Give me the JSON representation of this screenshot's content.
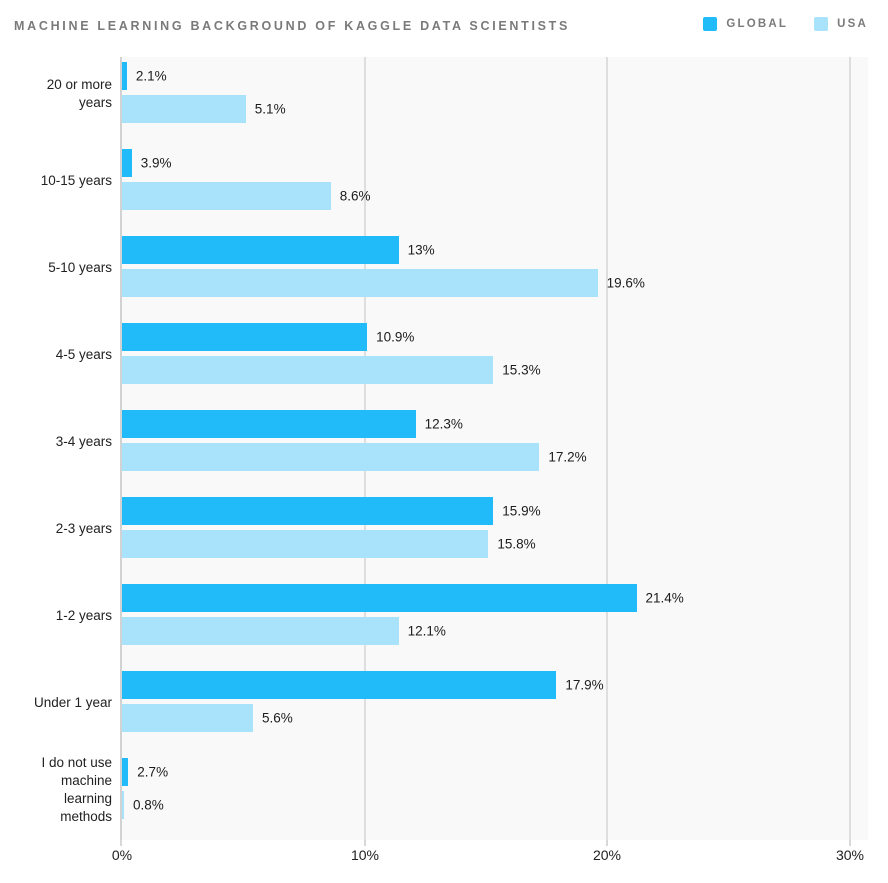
{
  "title": "MACHINE LEARNING BACKGROUND OF KAGGLE DATA SCIENTISTS",
  "legend": {
    "items": [
      {
        "label": "GLOBAL",
        "color": "#21BBFA"
      },
      {
        "label": "USA",
        "color": "#A9E2FB"
      }
    ]
  },
  "chart_data": {
    "type": "bar",
    "orientation": "horizontal",
    "title": "MACHINE LEARNING BACKGROUND OF KAGGLE DATA SCIENTISTS",
    "categories": [
      "20 or more years",
      "10-15 years",
      "5-10 years",
      "4-5 years",
      "3-4 years",
      "2-3 years",
      "1-2 years",
      "Under 1 year",
      "I do not use machine learning methods"
    ],
    "category_display": [
      "20 or more\nyears",
      "10-15 years",
      "5-10 years",
      "4-5 years",
      "3-4 years",
      "2-3 years",
      "1-2 years",
      "Under 1 year",
      "I do not use\nmachine\nlearning\nmethods"
    ],
    "series": [
      {
        "name": "GLOBAL",
        "color": "#21BBFA",
        "values": [
          2.1,
          3.9,
          13,
          10.9,
          12.3,
          15.9,
          21.4,
          17.9,
          2.7
        ],
        "value_labels": [
          "2.1%",
          "3.9%",
          "13%",
          "10.9%",
          "12.3%",
          "15.9%",
          "21.4%",
          "17.9%",
          "2.7%"
        ],
        "bar_display_pct": [
          0.2,
          0.4,
          11.4,
          10.1,
          12.1,
          15.3,
          21.2,
          17.9,
          0.26
        ]
      },
      {
        "name": "USA",
        "color": "#A9E2FB",
        "values": [
          5.1,
          8.6,
          19.6,
          15.3,
          17.2,
          15.8,
          12.1,
          5.6,
          0.8
        ],
        "value_labels": [
          "5.1%",
          "8.6%",
          "19.6%",
          "15.3%",
          "17.2%",
          "15.8%",
          "12.1%",
          "5.6%",
          "0.8%"
        ],
        "bar_display_pct": [
          5.1,
          8.6,
          19.6,
          15.3,
          17.2,
          15.1,
          11.4,
          5.4,
          0.08
        ]
      }
    ],
    "x_ticks": [
      "0%",
      "10%",
      "20%",
      "30%"
    ],
    "xlim": [
      0,
      30
    ],
    "xlabel": "",
    "ylabel": "",
    "grid": true,
    "legend_position": "top-right",
    "plot_background": "#F9F9F9",
    "gridline_color": "#DEDEDE",
    "zero_line_color": "#D2D2D2"
  }
}
